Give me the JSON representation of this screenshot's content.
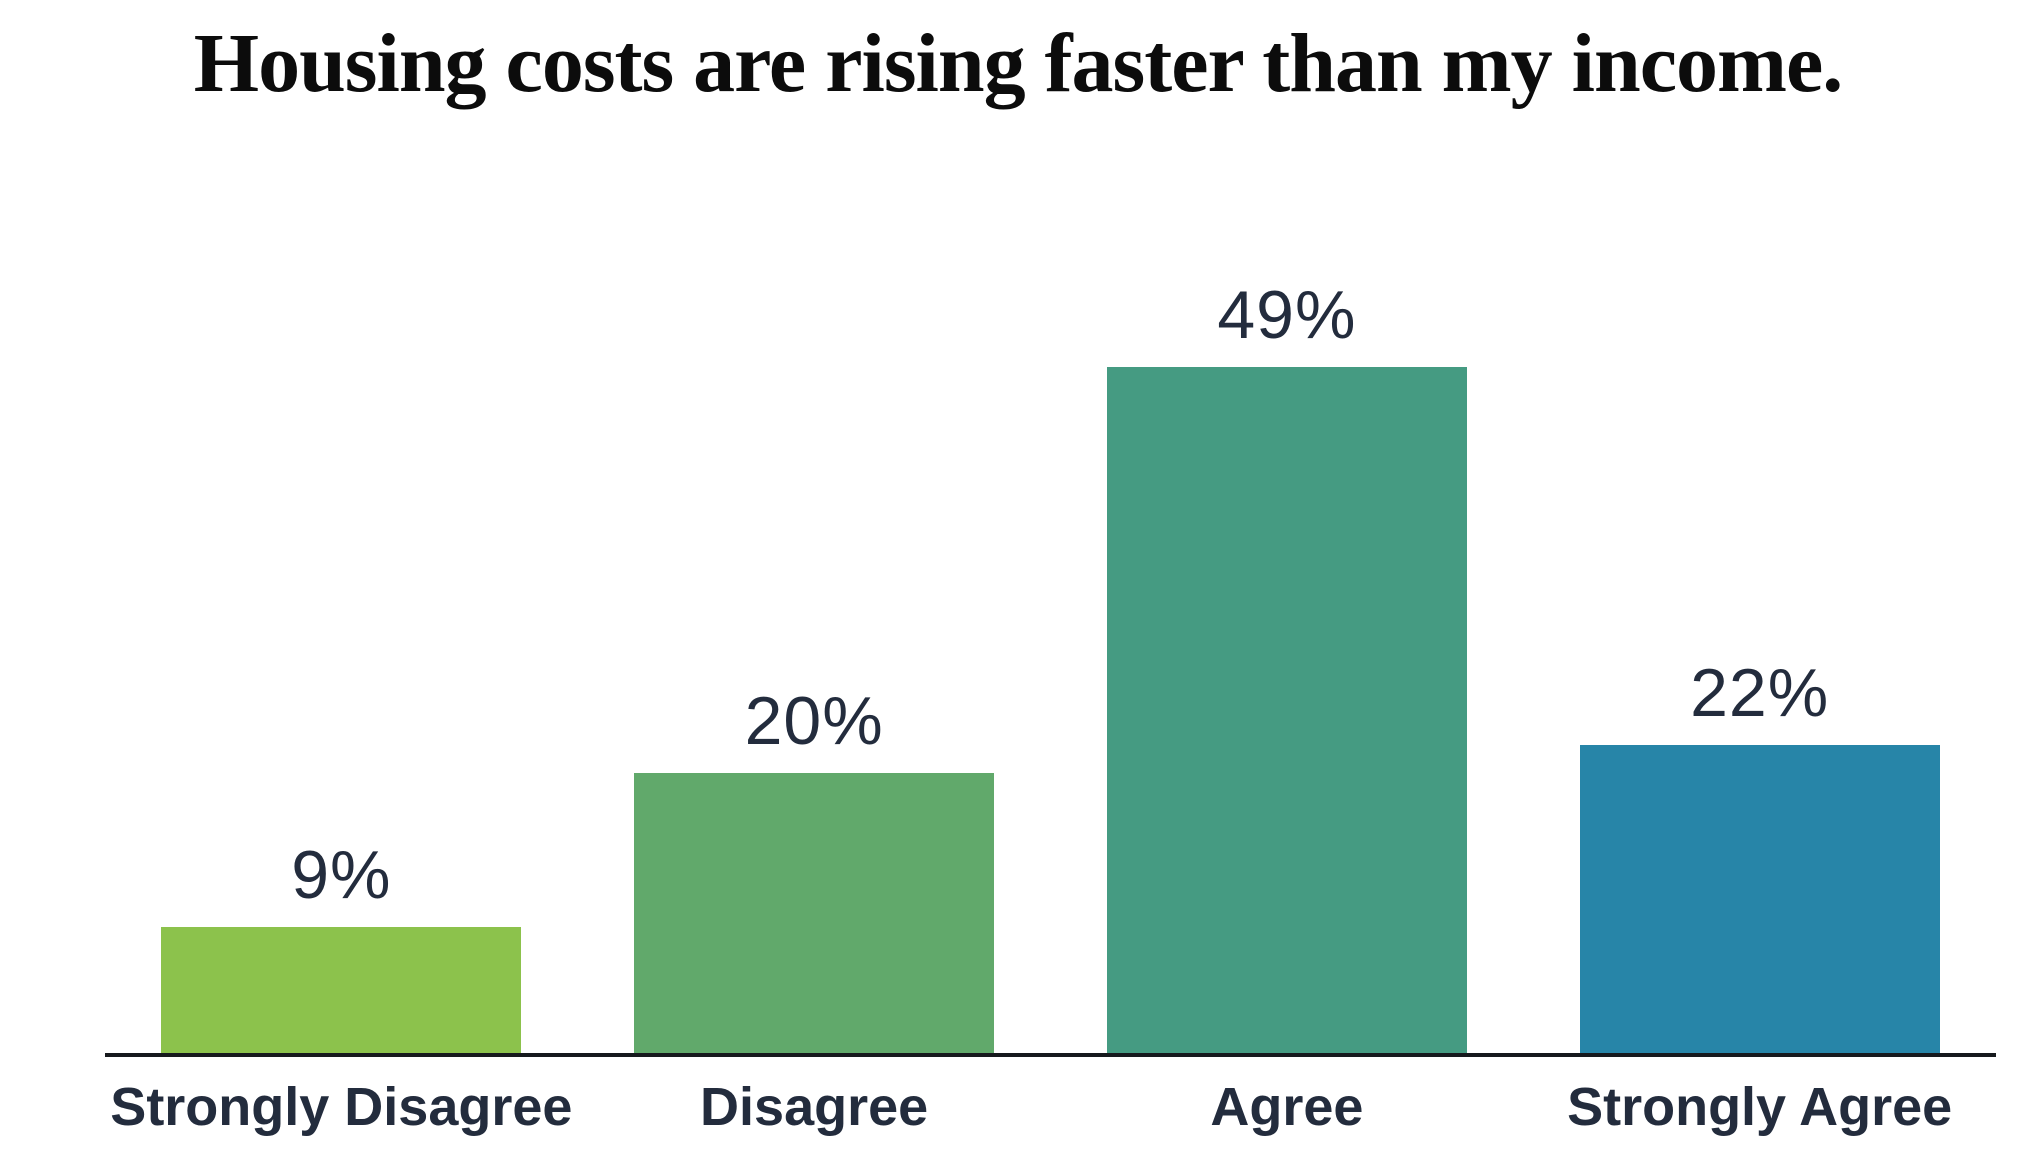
{
  "header": {
    "title": "Housing costs are rising faster than my income."
  },
  "chart_data": {
    "type": "bar",
    "title": "Housing costs are rising faster than my income.",
    "categories": [
      "Strongly Disagree",
      "Disagree",
      "Agree",
      "Strongly Agree"
    ],
    "values": [
      9,
      20,
      49,
      22
    ],
    "value_labels": [
      "9%",
      "20%",
      "49%",
      "22%"
    ],
    "bar_colors": [
      "#8cc24c",
      "#61a96b",
      "#459b82",
      "#2785a8"
    ],
    "unit": "%",
    "xlabel": "",
    "ylabel": "",
    "ylim": [
      0,
      66
    ],
    "grid": false,
    "legend": "none",
    "orientation": "vertical"
  },
  "colors": {
    "title_text": "#0c0c0c",
    "label_text": "#232c3d",
    "axis_line": "#16191d",
    "background": "#ffffff"
  }
}
